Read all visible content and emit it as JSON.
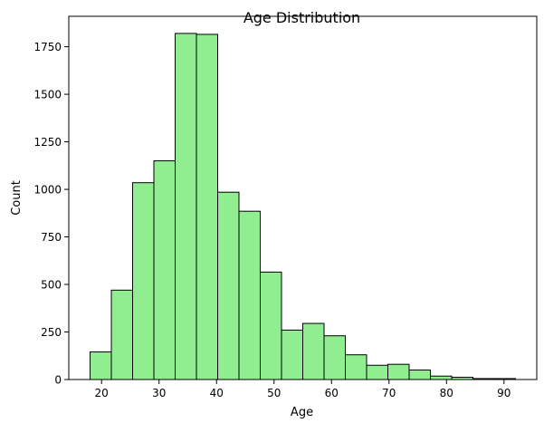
{
  "chart_data": {
    "type": "bar",
    "title": "Age Distribution",
    "xlabel": "Age",
    "ylabel": "Count",
    "xlim": [
      14.3,
      95.7
    ],
    "ylim": [
      0,
      1910
    ],
    "xticks": [
      20,
      30,
      40,
      50,
      60,
      70,
      80,
      90
    ],
    "yticks": [
      0,
      250,
      500,
      750,
      1000,
      1250,
      1500,
      1750
    ],
    "bin_edges": [
      18,
      21.7,
      25.4,
      29.1,
      32.8,
      36.5,
      40.2,
      43.9,
      47.6,
      51.3,
      55,
      58.7,
      62.4,
      66.1,
      69.8,
      73.5,
      77.2,
      80.9,
      84.6,
      88.3,
      92
    ],
    "values": [
      145,
      470,
      1035,
      1150,
      1820,
      1815,
      985,
      885,
      565,
      260,
      295,
      230,
      130,
      75,
      80,
      50,
      18,
      12,
      5,
      5
    ],
    "bar_color": "#90ee90",
    "edge_color": "#000000",
    "grid": false,
    "legend": "none"
  }
}
